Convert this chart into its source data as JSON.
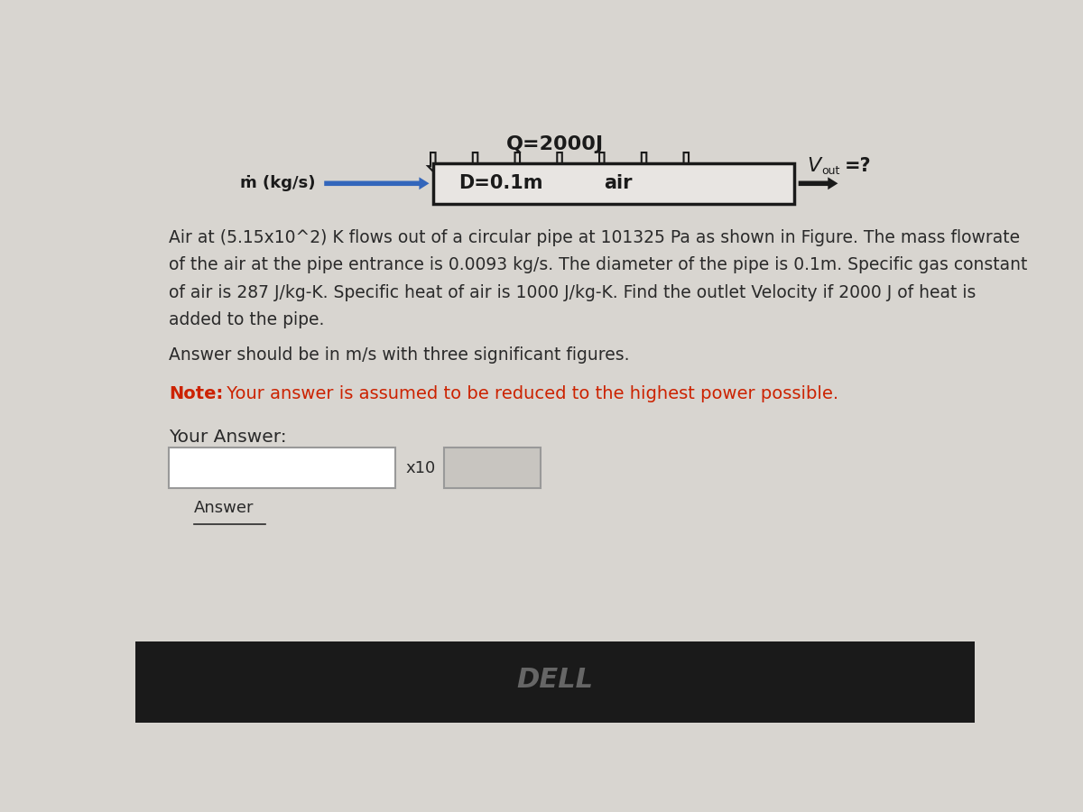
{
  "bg_color_top": "#d8d5d0",
  "bg_color_bottom": "#1a1a1a",
  "q_label": "Q=2000J",
  "pipe_label_d": "D=0.1m",
  "pipe_label_air": "air",
  "problem_text_line1": "Air at (5.15x10^2) K flows out of a circular pipe at 101325 Pa as shown in Figure. The mass flowrate",
  "problem_text_line2": "of the air at the pipe entrance is 0.0093 kg/s. The diameter of the pipe is 0.1m. Specific gas constant",
  "problem_text_line3": "of air is 287 J/kg-K. Specific heat of air is 1000 J/kg-K. Find the outlet Velocity if 2000 J of heat is",
  "problem_text_line4": "added to the pipe.",
  "answer_sig_text": "Answer should be in m/s with three significant figures.",
  "note_bold": "Note:",
  "note_rest": " Your answer is assumed to be reduced to the highest power possible.",
  "your_answer": "Your Answer:",
  "x10_label": "x10",
  "answer_label": "Answer",
  "text_color": "#2a2a2a",
  "note_color": "#cc2200",
  "arrow_color": "#1a1a1a",
  "left_arrow_color": "#3366bb"
}
